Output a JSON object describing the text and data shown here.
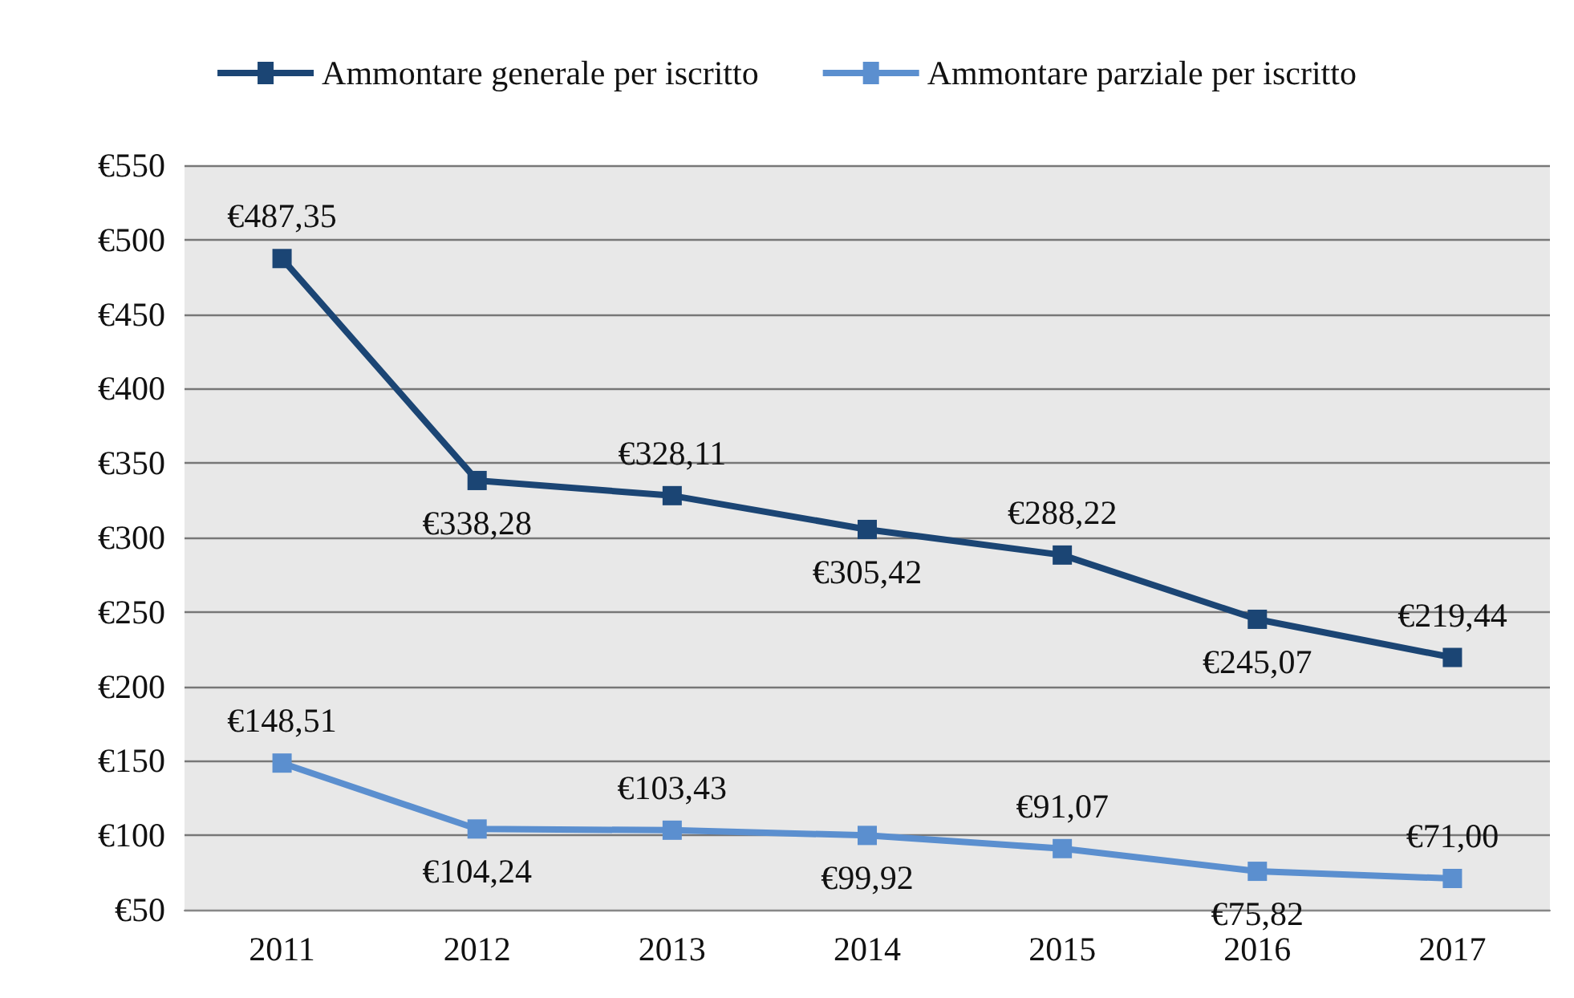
{
  "chart_data": {
    "type": "line",
    "categories": [
      "2011",
      "2012",
      "2013",
      "2014",
      "2015",
      "2016",
      "2017"
    ],
    "series": [
      {
        "name": "Ammontare generale per iscritto",
        "color": "#1b4574",
        "values": [
          487.35,
          338.28,
          328.11,
          305.42,
          288.22,
          245.07,
          219.44
        ],
        "value_labels": [
          "€487,35",
          "€338,28",
          "€328,11",
          "€305,42",
          "€288,22",
          "€245,07",
          "€219,44"
        ]
      },
      {
        "name": "Ammontare parziale per iscritto",
        "color": "#5b8fcf",
        "values": [
          148.51,
          104.24,
          103.43,
          99.92,
          91.07,
          75.82,
          71.0
        ],
        "value_labels": [
          "€148,51",
          "€104,24",
          "€103,43",
          "€99,92",
          "€91,07",
          "€75,82",
          "€71,00"
        ]
      }
    ],
    "ylim": [
      50,
      550
    ],
    "yticks": [
      {
        "value": 50,
        "label": "€50"
      },
      {
        "value": 100,
        "label": "€100"
      },
      {
        "value": 150,
        "label": "€150"
      },
      {
        "value": 200,
        "label": "€200"
      },
      {
        "value": 250,
        "label": "€250"
      },
      {
        "value": 300,
        "label": "€300"
      },
      {
        "value": 350,
        "label": "€350"
      },
      {
        "value": 400,
        "label": "€400"
      },
      {
        "value": 450,
        "label": "€450"
      },
      {
        "value": 500,
        "label": "€500"
      },
      {
        "value": 550,
        "label": "€550"
      }
    ],
    "grid": "y",
    "legend": "top",
    "marker": "square",
    "line_style": "solid"
  }
}
